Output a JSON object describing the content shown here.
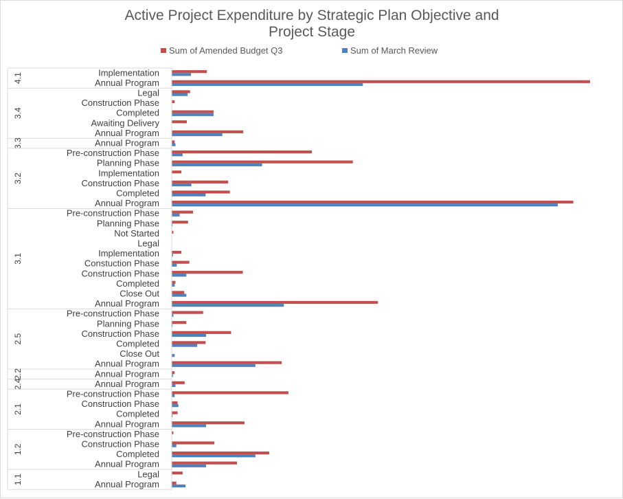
{
  "chart_data": {
    "type": "bar",
    "orientation": "horizontal",
    "title_lines": [
      "Active Project Expenditure by Strategic Plan Objective and",
      "Project Stage"
    ],
    "legend": {
      "placement": "top"
    },
    "series": [
      {
        "name": "Sum of Amended Budget Q3",
        "color": "#c0504d"
      },
      {
        "name": "Sum of March Review",
        "color": "#4f81bd"
      }
    ],
    "max_value": 1000,
    "groups": [
      {
        "label": "4.1",
        "items": [
          {
            "label": "Implementation",
            "values": [
              84,
              46
            ]
          },
          {
            "label": "Annual Program",
            "values": [
              1000,
              457
            ]
          }
        ]
      },
      {
        "label": "3.4",
        "items": [
          {
            "label": "Legal",
            "values": [
              44,
              38
            ]
          },
          {
            "label": "Construction Phase",
            "values": [
              7,
              0
            ]
          },
          {
            "label": "Completed",
            "values": [
              100,
              100
            ]
          },
          {
            "label": "Awaiting Delivery",
            "values": [
              36,
              0
            ]
          },
          {
            "label": "Annual Program",
            "values": [
              171,
              121
            ]
          }
        ]
      },
      {
        "label": "3.3",
        "items": [
          {
            "label": "Annual Program",
            "values": [
              7,
              9
            ]
          }
        ]
      },
      {
        "label": "3.2",
        "items": [
          {
            "label": "Pre-construction Phase",
            "values": [
              335,
              26
            ]
          },
          {
            "label": "Planning Phase",
            "values": [
              433,
              216
            ]
          },
          {
            "label": "Implementation",
            "values": [
              23,
              0
            ]
          },
          {
            "label": "Construction Phase",
            "values": [
              135,
              47
            ]
          },
          {
            "label": "Completed",
            "values": [
              139,
              81
            ]
          },
          {
            "label": "Annual Program",
            "values": [
              960,
              923
            ]
          }
        ]
      },
      {
        "label": "3.1",
        "items": [
          {
            "label": "Pre-construction Phase",
            "values": [
              51,
              19
            ]
          },
          {
            "label": "Planning Phase",
            "values": [
              39,
              2
            ]
          },
          {
            "label": "Not Started",
            "values": [
              4,
              0
            ]
          },
          {
            "label": "Legal",
            "values": [
              0,
              0
            ]
          },
          {
            "label": "Implementation",
            "values": [
              23,
              3
            ]
          },
          {
            "label": "Constuction Phase",
            "values": [
              42,
              12
            ]
          },
          {
            "label": "Construction Phase",
            "values": [
              170,
              35
            ]
          },
          {
            "label": "Completed",
            "values": [
              9,
              7
            ]
          },
          {
            "label": "Close Out",
            "values": [
              30,
              35
            ]
          },
          {
            "label": "Annual Program",
            "values": [
              493,
              268
            ]
          }
        ]
      },
      {
        "label": "2.5",
        "items": [
          {
            "label": "Pre-construction Phase",
            "values": [
              75,
              4
            ]
          },
          {
            "label": "Planning Phase",
            "values": [
              35,
              2
            ]
          },
          {
            "label": "Construction Phase",
            "values": [
              142,
              82
            ]
          },
          {
            "label": "Completed",
            "values": [
              81,
              61
            ]
          },
          {
            "label": "Close Out",
            "values": [
              0,
              7
            ]
          },
          {
            "label": "Annual Program",
            "values": [
              263,
              200
            ]
          }
        ]
      },
      {
        "label": "2.2",
        "items": [
          {
            "label": "Annual Program",
            "values": [
              7,
              3
            ]
          }
        ]
      },
      {
        "label": "2.4",
        "items": [
          {
            "label": "Annual Program",
            "values": [
              31,
              9
            ]
          }
        ]
      },
      {
        "label": "2.1",
        "items": [
          {
            "label": "Pre-construction Phase",
            "values": [
              279,
              7
            ]
          },
          {
            "label": "Construction Phase",
            "values": [
              14,
              16
            ]
          },
          {
            "label": "Completed",
            "values": [
              14,
              2
            ]
          },
          {
            "label": "Annual Program",
            "values": [
              174,
              82
            ]
          }
        ]
      },
      {
        "label": "1.2",
        "items": [
          {
            "label": "Pre-construction Phase",
            "values": [
              4,
              0
            ]
          },
          {
            "label": "Construction Phase",
            "values": [
              102,
              11
            ]
          },
          {
            "label": "Completed",
            "values": [
              233,
              200
            ]
          },
          {
            "label": "Annual Program",
            "values": [
              156,
              82
            ]
          }
        ]
      },
      {
        "label": "1.1",
        "items": [
          {
            "label": "Legal",
            "values": [
              26,
              0
            ]
          },
          {
            "label": "Annual Program",
            "values": [
              11,
              33
            ]
          }
        ]
      }
    ]
  }
}
